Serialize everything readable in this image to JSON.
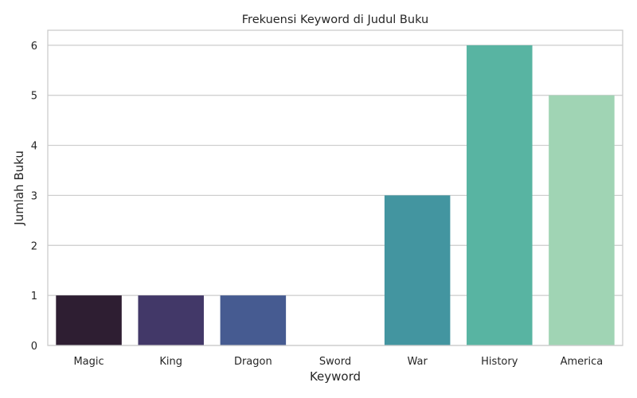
{
  "chart_data": {
    "type": "bar",
    "title": "Frekuensi Keyword di Judul Buku",
    "xlabel": "Keyword",
    "ylabel": "Jumlah Buku",
    "categories": [
      "Magic",
      "King",
      "Dragon",
      "Sword",
      "War",
      "History",
      "America"
    ],
    "values": [
      1,
      1,
      1,
      0,
      3,
      6,
      5
    ],
    "colors": [
      "#2e1e32",
      "#423868",
      "#465b91",
      "#3f7c9e",
      "#4395a0",
      "#58b4a2",
      "#a0d4b4"
    ],
    "ylim": [
      0,
      6.3
    ],
    "yticks": [
      0,
      1,
      2,
      3,
      4,
      5,
      6
    ],
    "grid": "horizontal",
    "grid_color": "#cccccc",
    "frame_color": "#cccccc"
  }
}
